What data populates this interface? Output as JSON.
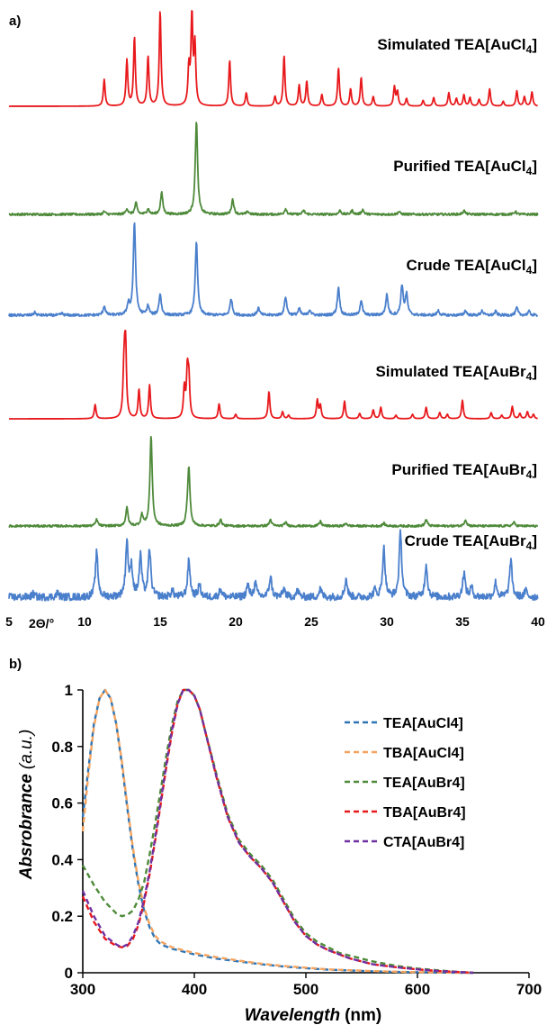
{
  "chart_data": [
    {
      "type": "line",
      "panel_label": "a)",
      "xlabel": "2Θ/°",
      "xlim": [
        5,
        40
      ],
      "x_ticks": [
        5,
        10,
        15,
        20,
        25,
        30,
        35,
        40
      ],
      "grid": false,
      "y_axis_shown": false,
      "colors": {
        "simulated": "#e8191c",
        "purified": "#4e8a3a",
        "crude": "#4a7fcc"
      },
      "series": [
        {
          "name": "Simulated TEA[AuCl4]",
          "label_main": "Simulated TEA[AuCl",
          "label_sub": "4",
          "label_end": "]",
          "color": "#e8191c",
          "noise": 0.0,
          "width": 0.07,
          "peaks": [
            [
              11.3,
              0.28
            ],
            [
              12.8,
              0.48
            ],
            [
              13.3,
              0.72
            ],
            [
              14.2,
              0.52
            ],
            [
              15.0,
              1.0
            ],
            [
              16.9,
              0.38
            ],
            [
              17.1,
              0.95
            ],
            [
              17.3,
              0.62
            ],
            [
              19.6,
              0.48
            ],
            [
              20.7,
              0.14
            ],
            [
              22.6,
              0.1
            ],
            [
              23.2,
              0.53
            ],
            [
              24.2,
              0.22
            ],
            [
              24.7,
              0.26
            ],
            [
              25.7,
              0.12
            ],
            [
              26.8,
              0.4
            ],
            [
              27.6,
              0.18
            ],
            [
              28.3,
              0.3
            ],
            [
              29.1,
              0.1
            ],
            [
              30.5,
              0.2
            ],
            [
              30.7,
              0.15
            ],
            [
              31.3,
              0.08
            ],
            [
              32.4,
              0.06
            ],
            [
              33.1,
              0.09
            ],
            [
              34.1,
              0.14
            ],
            [
              34.6,
              0.08
            ],
            [
              35.1,
              0.12
            ],
            [
              35.5,
              0.09
            ],
            [
              36.1,
              0.07
            ],
            [
              36.8,
              0.18
            ],
            [
              37.7,
              0.05
            ],
            [
              38.6,
              0.16
            ],
            [
              39.1,
              0.1
            ],
            [
              39.6,
              0.15
            ]
          ]
        },
        {
          "name": "Purified TEA[AuCl4]",
          "label_main": "Purified TEA[AuCl",
          "label_sub": "4",
          "label_end": "]",
          "color": "#4e8a3a",
          "noise": 0.012,
          "width": 0.09,
          "peaks": [
            [
              11.3,
              0.03
            ],
            [
              12.8,
              0.06
            ],
            [
              13.4,
              0.12
            ],
            [
              14.2,
              0.06
            ],
            [
              15.1,
              0.23
            ],
            [
              17.4,
              1.0
            ],
            [
              19.8,
              0.16
            ],
            [
              20.8,
              0.03
            ],
            [
              23.3,
              0.06
            ],
            [
              24.5,
              0.04
            ],
            [
              26.9,
              0.04
            ],
            [
              27.7,
              0.04
            ],
            [
              28.4,
              0.05
            ],
            [
              30.8,
              0.03
            ],
            [
              35.1,
              0.04
            ],
            [
              38.5,
              0.03
            ]
          ]
        },
        {
          "name": "Crude TEA[AuCl4]",
          "label_main": "Crude TEA[AuCl",
          "label_sub": "4",
          "label_end": "]",
          "color": "#4a7fcc",
          "noise": 0.014,
          "width": 0.09,
          "peaks": [
            [
              6.7,
              0.03
            ],
            [
              8.5,
              0.02
            ],
            [
              11.3,
              0.1
            ],
            [
              12.9,
              0.12
            ],
            [
              13.3,
              1.0
            ],
            [
              14.2,
              0.1
            ],
            [
              15.0,
              0.23
            ],
            [
              17.4,
              0.8
            ],
            [
              19.7,
              0.18
            ],
            [
              21.5,
              0.08
            ],
            [
              23.3,
              0.2
            ],
            [
              24.2,
              0.07
            ],
            [
              24.9,
              0.06
            ],
            [
              26.8,
              0.3
            ],
            [
              28.3,
              0.16
            ],
            [
              30.0,
              0.22
            ],
            [
              31.0,
              0.32
            ],
            [
              31.3,
              0.22
            ],
            [
              33.4,
              0.05
            ],
            [
              35.2,
              0.05
            ],
            [
              36.3,
              0.05
            ],
            [
              37.2,
              0.04
            ],
            [
              38.6,
              0.08
            ],
            [
              39.4,
              0.04
            ]
          ]
        },
        {
          "name": "Simulated TEA[AuBr4]",
          "label_main": "Simulated TEA[AuBr",
          "label_sub": "4",
          "label_end": "]",
          "color": "#e8191c",
          "noise": 0.0,
          "width": 0.07,
          "peaks": [
            [
              10.7,
              0.16
            ],
            [
              12.6,
              0.45
            ],
            [
              12.7,
              1.0
            ],
            [
              13.6,
              0.33
            ],
            [
              14.3,
              0.38
            ],
            [
              16.6,
              0.34
            ],
            [
              16.8,
              0.51
            ],
            [
              16.9,
              0.42
            ],
            [
              18.9,
              0.17
            ],
            [
              20.0,
              0.05
            ],
            [
              22.2,
              0.31
            ],
            [
              23.1,
              0.08
            ],
            [
              23.5,
              0.04
            ],
            [
              25.4,
              0.21
            ],
            [
              25.6,
              0.15
            ],
            [
              27.2,
              0.2
            ],
            [
              28.2,
              0.06
            ],
            [
              29.1,
              0.1
            ],
            [
              29.6,
              0.13
            ],
            [
              30.6,
              0.04
            ],
            [
              31.7,
              0.05
            ],
            [
              32.6,
              0.13
            ],
            [
              33.5,
              0.07
            ],
            [
              34.0,
              0.05
            ],
            [
              35.0,
              0.21
            ],
            [
              36.9,
              0.07
            ],
            [
              37.6,
              0.04
            ],
            [
              38.3,
              0.14
            ],
            [
              38.8,
              0.06
            ],
            [
              39.3,
              0.08
            ],
            [
              39.7,
              0.05
            ]
          ]
        },
        {
          "name": "Purified TEA[AuBr4]",
          "label_main": "Purified TEA[AuBr",
          "label_sub": "4",
          "label_end": "]",
          "color": "#4e8a3a",
          "noise": 0.012,
          "width": 0.09,
          "peaks": [
            [
              10.8,
              0.07
            ],
            [
              12.8,
              0.2
            ],
            [
              13.8,
              0.12
            ],
            [
              14.4,
              1.0
            ],
            [
              16.8,
              0.08
            ],
            [
              16.9,
              0.62
            ],
            [
              19.0,
              0.07
            ],
            [
              22.3,
              0.07
            ],
            [
              23.3,
              0.04
            ],
            [
              25.6,
              0.05
            ],
            [
              27.3,
              0.03
            ],
            [
              29.8,
              0.03
            ],
            [
              32.6,
              0.07
            ],
            [
              35.2,
              0.07
            ],
            [
              38.4,
              0.04
            ]
          ]
        },
        {
          "name": "Crude TEA[AuBr4]",
          "label_main": "Crude TEA[AuBr",
          "label_sub": "4",
          "label_end": "]",
          "color": "#4a7fcc",
          "noise": 0.045,
          "width": 0.1,
          "peaks": [
            [
              6.6,
              0.04
            ],
            [
              8.2,
              0.05
            ],
            [
              10.8,
              0.55
            ],
            [
              12.8,
              0.67
            ],
            [
              13.1,
              0.35
            ],
            [
              13.7,
              0.5
            ],
            [
              14.3,
              0.58
            ],
            [
              15.8,
              0.08
            ],
            [
              16.9,
              0.45
            ],
            [
              17.6,
              0.15
            ],
            [
              19.0,
              0.1
            ],
            [
              20.8,
              0.15
            ],
            [
              21.3,
              0.17
            ],
            [
              22.3,
              0.25
            ],
            [
              23.2,
              0.1
            ],
            [
              24.1,
              0.08
            ],
            [
              25.6,
              0.1
            ],
            [
              27.3,
              0.22
            ],
            [
              29.2,
              0.08
            ],
            [
              29.8,
              0.6
            ],
            [
              30.9,
              0.8
            ],
            [
              32.6,
              0.4
            ],
            [
              35.1,
              0.3
            ],
            [
              35.6,
              0.12
            ],
            [
              37.2,
              0.18
            ],
            [
              38.2,
              0.45
            ],
            [
              39.2,
              0.08
            ]
          ]
        }
      ]
    },
    {
      "type": "line",
      "panel_label": "b)",
      "xlabel_main": "Wavelength",
      "xlabel_unit": "(nm)",
      "ylabel": "Absrobrance",
      "ylabel_unit": "(a.u.)",
      "xlim": [
        300,
        700
      ],
      "ylim": [
        0,
        1
      ],
      "x_ticks": [
        "300",
        "400",
        "500",
        "600",
        "700"
      ],
      "y_ticks": [
        "0",
        "0.2",
        "0.4",
        "0.6",
        "0.8",
        "1"
      ],
      "grid": false,
      "legend_position": "right",
      "line_style": "dashed",
      "series": [
        {
          "name": "TEA[AuCl4]",
          "color": "#2e75b6",
          "x": [
            300,
            305,
            310,
            315,
            320,
            325,
            330,
            335,
            340,
            345,
            350,
            355,
            360,
            365,
            370,
            380,
            390,
            400,
            420,
            440,
            460,
            480,
            500,
            520,
            540,
            560,
            580,
            600,
            620,
            640,
            650
          ],
          "y": [
            0.55,
            0.72,
            0.88,
            0.97,
            1.0,
            0.97,
            0.88,
            0.74,
            0.58,
            0.43,
            0.31,
            0.22,
            0.16,
            0.12,
            0.1,
            0.085,
            0.075,
            0.065,
            0.05,
            0.04,
            0.03,
            0.022,
            0.016,
            0.011,
            0.008,
            0.005,
            0.003,
            0.002,
            0.001,
            0.0,
            0.0
          ]
        },
        {
          "name": "TBA[AuCl4]",
          "color": "#f4a460",
          "x": [
            300,
            305,
            310,
            315,
            320,
            325,
            330,
            335,
            340,
            345,
            350,
            355,
            360,
            365,
            370,
            380,
            390,
            400,
            420,
            440,
            460,
            480,
            500,
            520,
            540,
            560,
            580,
            600,
            620,
            640,
            650
          ],
          "y": [
            0.5,
            0.7,
            0.87,
            0.97,
            1.0,
            0.97,
            0.88,
            0.75,
            0.59,
            0.44,
            0.32,
            0.23,
            0.17,
            0.13,
            0.11,
            0.09,
            0.08,
            0.07,
            0.055,
            0.043,
            0.032,
            0.024,
            0.018,
            0.012,
            0.009,
            0.006,
            0.004,
            0.002,
            0.001,
            0.0,
            0.0
          ]
        },
        {
          "name": "TEA[AuBr4]",
          "color": "#4e8a3a",
          "x": [
            300,
            310,
            320,
            330,
            335,
            340,
            345,
            350,
            355,
            360,
            365,
            370,
            375,
            380,
            385,
            390,
            395,
            400,
            405,
            410,
            420,
            430,
            440,
            450,
            460,
            470,
            480,
            490,
            500,
            510,
            520,
            530,
            540,
            560,
            580,
            600,
            620,
            640,
            650
          ],
          "y": [
            0.38,
            0.31,
            0.25,
            0.21,
            0.2,
            0.205,
            0.22,
            0.26,
            0.32,
            0.42,
            0.53,
            0.65,
            0.77,
            0.88,
            0.96,
            1.0,
            1.0,
            0.98,
            0.93,
            0.85,
            0.7,
            0.56,
            0.47,
            0.42,
            0.38,
            0.33,
            0.26,
            0.19,
            0.14,
            0.11,
            0.09,
            0.07,
            0.06,
            0.04,
            0.025,
            0.015,
            0.008,
            0.002,
            0.0
          ]
        },
        {
          "name": "TBA[AuBr4]",
          "color": "#e8191c",
          "x": [
            300,
            310,
            320,
            330,
            335,
            340,
            345,
            350,
            355,
            360,
            365,
            370,
            375,
            380,
            385,
            390,
            395,
            400,
            405,
            410,
            420,
            430,
            440,
            450,
            460,
            470,
            480,
            490,
            500,
            510,
            520,
            530,
            540,
            560,
            580,
            600,
            620,
            640,
            650
          ],
          "y": [
            0.27,
            0.18,
            0.12,
            0.095,
            0.09,
            0.095,
            0.12,
            0.17,
            0.25,
            0.35,
            0.47,
            0.6,
            0.73,
            0.85,
            0.95,
            1.0,
            1.0,
            0.98,
            0.93,
            0.85,
            0.69,
            0.55,
            0.46,
            0.41,
            0.37,
            0.32,
            0.25,
            0.18,
            0.13,
            0.1,
            0.08,
            0.065,
            0.05,
            0.03,
            0.02,
            0.012,
            0.006,
            0.002,
            0.0
          ]
        },
        {
          "name": "CTA[AuBr4]",
          "color": "#7030a0",
          "x": [
            300,
            310,
            320,
            330,
            335,
            340,
            345,
            350,
            355,
            360,
            365,
            370,
            375,
            380,
            385,
            390,
            395,
            400,
            405,
            410,
            420,
            430,
            440,
            450,
            460,
            470,
            480,
            490,
            500,
            510,
            520,
            530,
            540,
            560,
            580,
            600,
            620,
            640,
            650
          ],
          "y": [
            0.29,
            0.2,
            0.13,
            0.1,
            0.09,
            0.1,
            0.13,
            0.18,
            0.26,
            0.36,
            0.48,
            0.61,
            0.74,
            0.86,
            0.95,
            1.0,
            1.0,
            0.98,
            0.93,
            0.85,
            0.69,
            0.55,
            0.46,
            0.41,
            0.37,
            0.32,
            0.25,
            0.18,
            0.13,
            0.1,
            0.08,
            0.065,
            0.05,
            0.03,
            0.02,
            0.012,
            0.006,
            0.002,
            0.0
          ]
        }
      ]
    }
  ]
}
